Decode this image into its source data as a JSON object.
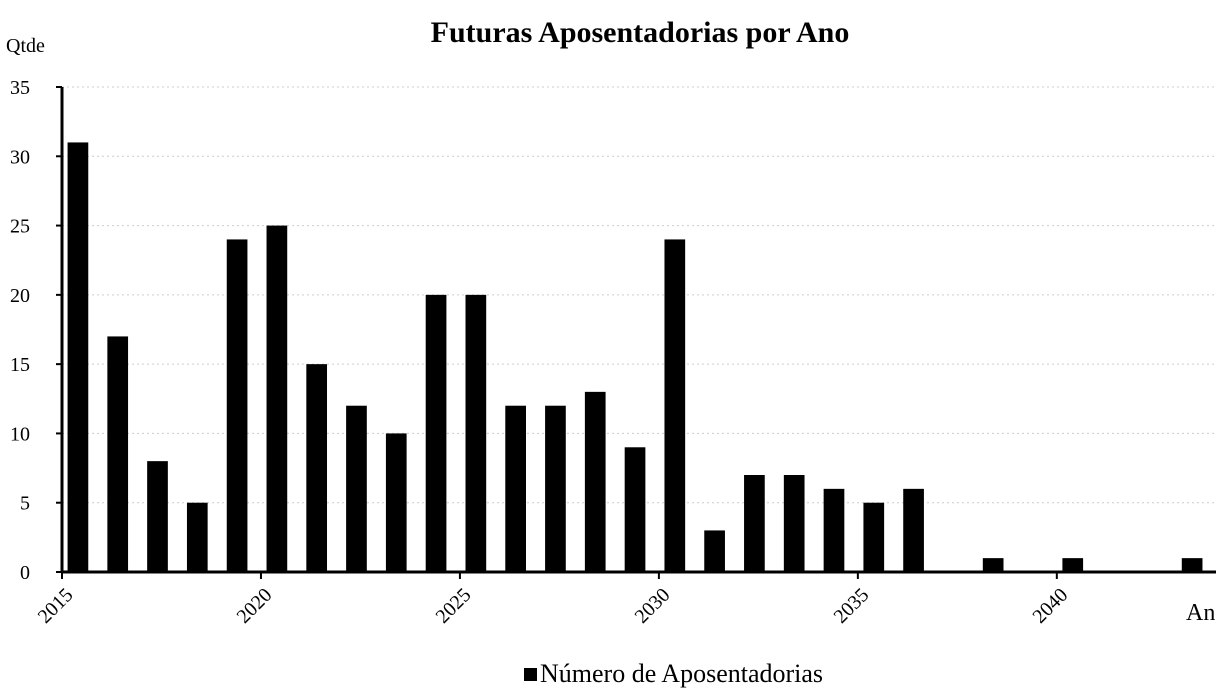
{
  "chart_data": {
    "type": "bar",
    "title": "Futuras Aposentadorias por Ano",
    "y_label": "Qtde",
    "x_label": "Ano",
    "series": [
      {
        "name": "Número de Aposentadorias",
        "color": "#000000",
        "values": [
          31,
          17,
          8,
          5,
          24,
          25,
          15,
          12,
          10,
          20,
          20,
          12,
          12,
          13,
          9,
          24,
          3,
          7,
          7,
          6,
          5,
          6,
          0,
          1,
          0,
          1,
          0,
          0,
          1
        ]
      }
    ],
    "x": [
      2015,
      2016,
      2017,
      2018,
      2019,
      2020,
      2021,
      2022,
      2023,
      2024,
      2025,
      2026,
      2027,
      2028,
      2029,
      2030,
      2031,
      2032,
      2033,
      2034,
      2035,
      2036,
      2037,
      2038,
      2039,
      2040,
      2041,
      2042,
      2043
    ],
    "xlim": [
      2015,
      2044
    ],
    "xticks": [
      2015,
      2020,
      2025,
      2030,
      2035,
      2040
    ],
    "ylim": [
      0,
      35
    ],
    "yticks": [
      0,
      5,
      10,
      15,
      20,
      25,
      30,
      35
    ],
    "grid": true,
    "legend": "bottom"
  }
}
